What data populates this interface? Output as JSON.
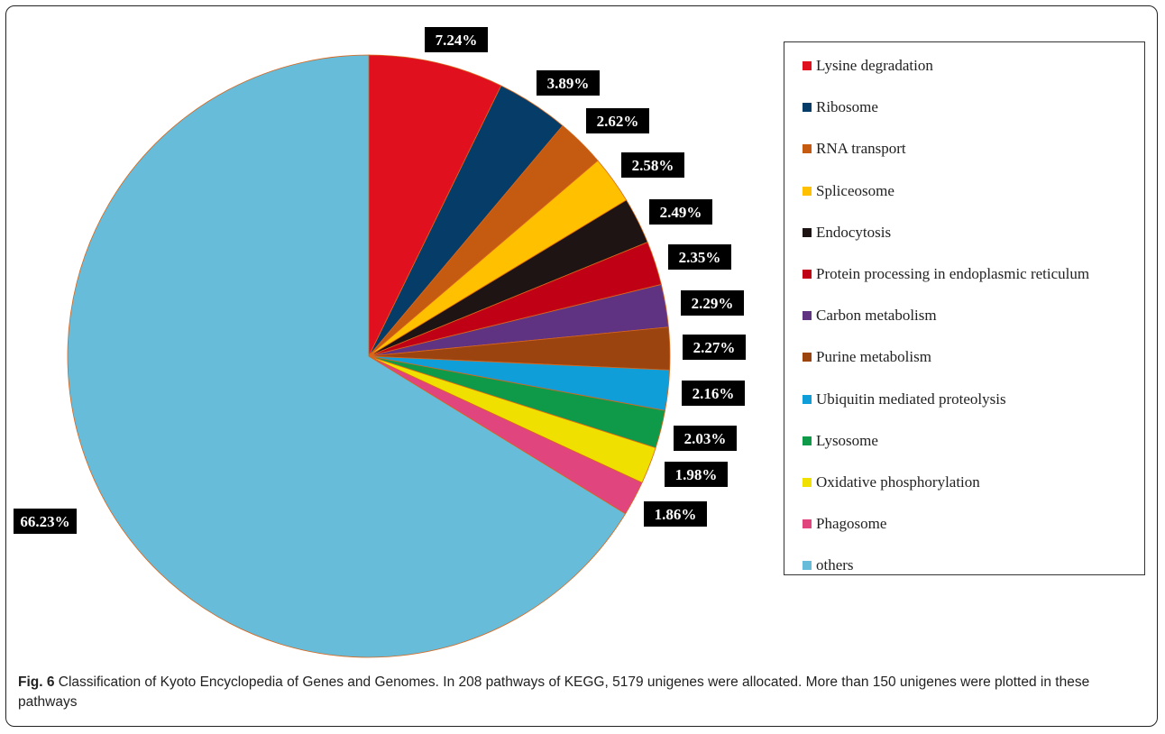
{
  "caption": {
    "label": "Fig. 6",
    "text": " Classification of Kyoto Encyclopedia of Genes and Genomes. In 208 pathways of KEGG, 5179 unigenes were allocated. More than 150 unigenes were plotted in these pathways"
  },
  "chart_data": {
    "type": "pie",
    "title": "",
    "legend_position": "right",
    "slices": [
      {
        "name": "Lysine degradation",
        "value": 7.24,
        "label": "7.24%",
        "color": "#e0101e"
      },
      {
        "name": "Ribosome",
        "value": 3.89,
        "label": "3.89%",
        "color": "#063c68"
      },
      {
        "name": "RNA transport",
        "value": 2.62,
        "label": "2.62%",
        "color": "#c55a11"
      },
      {
        "name": "Spliceosome",
        "value": 2.58,
        "label": "2.58%",
        "color": "#ffc000"
      },
      {
        "name": "Endocytosis",
        "value": 2.49,
        "label": "2.49%",
        "color": "#1e1414"
      },
      {
        "name": "Protein processing in endoplasmic reticulum",
        "value": 2.35,
        "label": "2.35%",
        "color": "#c00014"
      },
      {
        "name": "Carbon metabolism",
        "value": 2.29,
        "label": "2.29%",
        "color": "#5f3382"
      },
      {
        "name": "Purine metabolism",
        "value": 2.27,
        "label": "2.27%",
        "color": "#9c4410"
      },
      {
        "name": "Ubiquitin mediated proteolysis",
        "value": 2.16,
        "label": "2.16%",
        "color": "#109ed8"
      },
      {
        "name": "Lysosome",
        "value": 2.03,
        "label": "2.03%",
        "color": "#0e9a48"
      },
      {
        "name": "Oxidative phosphorylation",
        "value": 1.98,
        "label": "1.98%",
        "color": "#f0e000"
      },
      {
        "name": "Phagosome",
        "value": 1.86,
        "label": "1.86%",
        "color": "#e0457e"
      },
      {
        "name": "others",
        "value": 66.23,
        "label": "66.23%",
        "color": "#66bcd9"
      }
    ]
  }
}
